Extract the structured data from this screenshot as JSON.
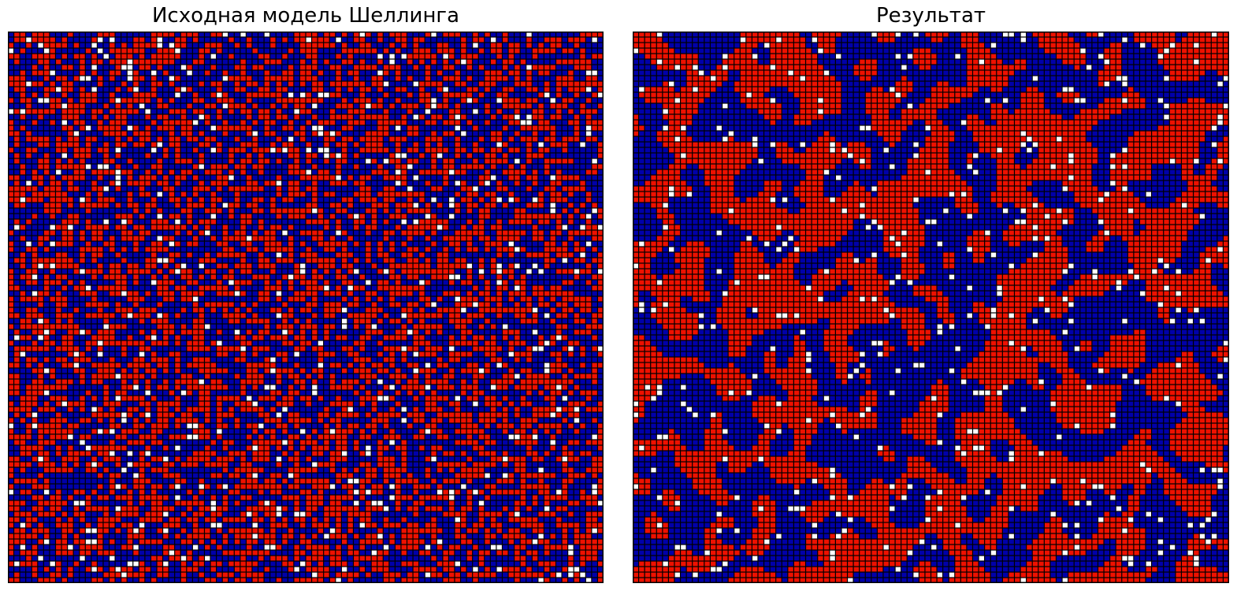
{
  "colors": {
    "empty": "#ffffff",
    "group_a": "#ee1100",
    "group_b": "#0000aa",
    "cell_edge": "#000000",
    "frame": "#000000",
    "background": "#ffffff"
  },
  "chart_data": [
    {
      "type": "heatmap",
      "title": "Исходная модель Шеллинга",
      "grid": true,
      "axes_visible": false,
      "rows": 100,
      "cols": 100,
      "categories": [
        "empty",
        "group_a",
        "group_b"
      ],
      "seed": 12345,
      "empty_fraction": 0.05,
      "group_a_fraction": 0.475,
      "group_b_fraction": 0.475,
      "clustering_steps": 0
    },
    {
      "type": "heatmap",
      "title": "Результат",
      "grid": true,
      "axes_visible": false,
      "rows": 100,
      "cols": 100,
      "categories": [
        "empty",
        "group_a",
        "group_b"
      ],
      "seed": 67890,
      "empty_fraction": 0.05,
      "group_a_fraction": 0.475,
      "group_b_fraction": 0.475,
      "clustering_steps": 3
    }
  ]
}
